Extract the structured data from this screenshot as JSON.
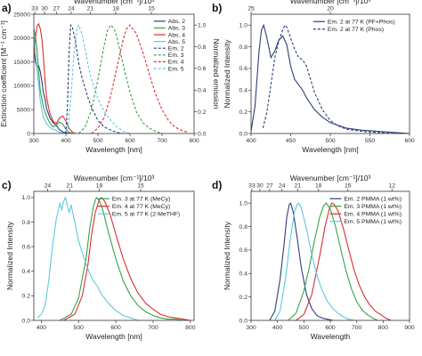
{
  "figure_title": "",
  "chart_data": [
    {
      "panel": "a)",
      "type": "line",
      "xlabel": "Wavelength [nm]",
      "ylabel": "Extinction coefficient [M⁻¹ cm⁻¹]",
      "y2label": "Normalized emission",
      "toplabel": "Wavenumber [cm⁻¹]/10³",
      "xlim": [
        300,
        800
      ],
      "ylim": [
        0,
        25000
      ],
      "y2lim": [
        0,
        1.1
      ],
      "xticks": [
        300,
        400,
        500,
        600,
        700,
        800
      ],
      "yticks": [
        0,
        5000,
        10000,
        15000,
        20000,
        25000
      ],
      "ytick_labels": [
        "0",
        "5000",
        "10000",
        "15000",
        "20000",
        "25000"
      ],
      "y2ticks": [
        0,
        0.2,
        0.4,
        0.6,
        0.8,
        1.0
      ],
      "topticks": [
        33,
        30,
        27,
        24,
        21,
        18,
        15
      ],
      "legend_position": "top-right",
      "series": [
        {
          "name": "Abs. 2",
          "color": "#2d3f7a",
          "dash": "solid",
          "axis": "left",
          "x": [
            300,
            305,
            310,
            315,
            320,
            325,
            330,
            335,
            340,
            350,
            360,
            370,
            380,
            390,
            400,
            410,
            420
          ],
          "y": [
            17500,
            15000,
            13800,
            14200,
            13000,
            11000,
            8500,
            7200,
            5200,
            3300,
            2300,
            1700,
            800,
            350,
            150,
            50,
            0
          ]
        },
        {
          "name": "Abs. 3",
          "color": "#3aa04a",
          "dash": "solid",
          "axis": "left",
          "x": [
            300,
            305,
            310,
            315,
            320,
            330,
            340,
            350,
            360,
            370,
            380,
            390,
            400,
            410,
            420
          ],
          "y": [
            22000,
            20500,
            17500,
            13000,
            9000,
            5500,
            3500,
            2200,
            1400,
            1800,
            2400,
            2000,
            900,
            250,
            0
          ]
        },
        {
          "name": "Abs. 4",
          "color": "#d93030",
          "dash": "solid",
          "axis": "left",
          "x": [
            300,
            305,
            310,
            315,
            320,
            325,
            330,
            335,
            340,
            350,
            360,
            370,
            380,
            390,
            400,
            410,
            420,
            430
          ],
          "y": [
            16000,
            20000,
            22500,
            23000,
            22000,
            20000,
            16000,
            11000,
            7500,
            4200,
            2600,
            2100,
            3200,
            3700,
            2600,
            1100,
            300,
            0
          ]
        },
        {
          "name": "Abs. 5",
          "color": "#5cc8e0",
          "dash": "solid",
          "axis": "left",
          "x": [
            300,
            305,
            310,
            315,
            320,
            325,
            330,
            340,
            350,
            360,
            370,
            380,
            390,
            400
          ],
          "y": [
            21000,
            17000,
            13500,
            10000,
            7000,
            4800,
            3400,
            2000,
            1300,
            900,
            600,
            300,
            100,
            0
          ]
        },
        {
          "name": "Em. 2",
          "color": "#2d3f7a",
          "dash": "dashed",
          "axis": "right",
          "x": [
            400,
            405,
            410,
            415,
            420,
            430,
            440,
            450,
            460,
            470,
            480,
            500,
            520,
            540,
            560,
            580
          ],
          "y": [
            0,
            0.25,
            0.75,
            1.0,
            0.98,
            0.85,
            0.65,
            0.52,
            0.42,
            0.32,
            0.24,
            0.12,
            0.06,
            0.03,
            0.01,
            0
          ]
        },
        {
          "name": "Em. 3",
          "color": "#3aa04a",
          "dash": "dashed",
          "axis": "right",
          "x": [
            440,
            460,
            480,
            500,
            520,
            530,
            540,
            550,
            560,
            580,
            600,
            620,
            640,
            660,
            680,
            700
          ],
          "y": [
            0,
            0.06,
            0.22,
            0.5,
            0.82,
            0.95,
            1.0,
            0.97,
            0.88,
            0.62,
            0.38,
            0.2,
            0.1,
            0.05,
            0.02,
            0
          ]
        },
        {
          "name": "Em. 4",
          "color": "#d93030",
          "dash": "dashed",
          "axis": "right",
          "x": [
            480,
            500,
            520,
            540,
            560,
            580,
            590,
            600,
            620,
            640,
            660,
            680,
            700,
            720,
            740,
            760,
            780
          ],
          "y": [
            0,
            0.05,
            0.15,
            0.35,
            0.62,
            0.88,
            0.97,
            1.0,
            0.92,
            0.75,
            0.55,
            0.36,
            0.22,
            0.12,
            0.06,
            0.03,
            0.01
          ]
        },
        {
          "name": "Em. 5",
          "color": "#5cc8e0",
          "dash": "dashed",
          "axis": "right",
          "x": [
            405,
            415,
            425,
            435,
            440,
            450,
            460,
            470,
            480,
            500,
            520,
            540,
            560,
            580,
            600
          ],
          "y": [
            0,
            0.3,
            0.72,
            0.98,
            1.0,
            0.92,
            0.78,
            0.62,
            0.5,
            0.32,
            0.2,
            0.12,
            0.06,
            0.02,
            0
          ]
        }
      ]
    },
    {
      "panel": "b)",
      "type": "line",
      "xlabel": "Wavelength [nm]",
      "ylabel": "Normalized Intensity",
      "toplabel": "Wavenumber [cm⁻¹]/10³",
      "xlim": [
        400,
        600
      ],
      "ylim": [
        0,
        1.1
      ],
      "xticks": [
        400,
        450,
        500,
        550,
        600
      ],
      "yticks": [
        0,
        0.2,
        0.4,
        0.6,
        0.8,
        1.0
      ],
      "ytick_labels": [
        "0.0",
        "0.2",
        "0.4",
        "0.6",
        "0.8",
        "1.0"
      ],
      "topticks": [
        25,
        20
      ],
      "legend_position": "top-right",
      "series": [
        {
          "name": "Em. 2 at 77 K (PF+Phos)",
          "color": "#2d3f7a",
          "dash": "solid",
          "x": [
            400,
            405,
            410,
            413,
            416,
            420,
            425,
            430,
            435,
            440,
            445,
            450,
            455,
            460,
            465,
            470,
            480,
            490,
            500,
            520,
            540,
            560,
            580,
            600
          ],
          "y": [
            0.02,
            0.25,
            0.75,
            0.95,
            1.0,
            0.88,
            0.7,
            0.76,
            0.86,
            0.9,
            0.82,
            0.62,
            0.5,
            0.45,
            0.4,
            0.33,
            0.22,
            0.15,
            0.1,
            0.05,
            0.03,
            0.02,
            0.01,
            0
          ]
        },
        {
          "name": "Em. 2 at 77 K (Phos)",
          "color": "#2d3f7a",
          "dash": "dashed",
          "x": [
            415,
            420,
            425,
            430,
            435,
            440,
            443,
            445,
            450,
            455,
            460,
            465,
            470,
            475,
            480,
            490,
            500,
            510,
            520,
            540,
            560,
            580,
            600
          ],
          "y": [
            0.05,
            0.2,
            0.45,
            0.7,
            0.85,
            0.96,
            1.0,
            0.98,
            0.88,
            0.78,
            0.7,
            0.68,
            0.62,
            0.5,
            0.38,
            0.22,
            0.12,
            0.07,
            0.04,
            0.02,
            0.01,
            0,
            0
          ]
        }
      ]
    },
    {
      "panel": "c)",
      "type": "line",
      "xlabel": "Wavelength [nm]",
      "ylabel": "Normalized Intensity",
      "toplabel": "Wavenumber [cm⁻¹]/10³",
      "xlim": [
        380,
        810
      ],
      "ylim": [
        0,
        1.05
      ],
      "xticks": [
        400,
        500,
        600,
        700,
        800
      ],
      "yticks": [
        0,
        0.2,
        0.4,
        0.6,
        0.8,
        1.0
      ],
      "ytick_labels": [
        "0.0",
        "0.2",
        "0.4",
        "0.6",
        "0.8",
        "1.0"
      ],
      "topticks": [
        24,
        21,
        18,
        15
      ],
      "legend_position": "top-right",
      "series": [
        {
          "name": "Em. 3 at 77 K (MeCy)",
          "color": "#3aa04a",
          "dash": "solid",
          "x": [
            450,
            480,
            500,
            520,
            530,
            540,
            548,
            555,
            565,
            580,
            600,
            620,
            640,
            660,
            680,
            700,
            720,
            740,
            760,
            780,
            800
          ],
          "y": [
            0,
            0.05,
            0.18,
            0.5,
            0.75,
            0.93,
            1.0,
            0.98,
            0.9,
            0.72,
            0.5,
            0.32,
            0.2,
            0.12,
            0.07,
            0.04,
            0.02,
            0.01,
            0.01,
            0,
            0
          ]
        },
        {
          "name": "Em. 4 at 77 K (MeCy)",
          "color": "#d93030",
          "dash": "solid",
          "x": [
            460,
            490,
            510,
            525,
            535,
            545,
            555,
            562,
            570,
            585,
            600,
            620,
            640,
            660,
            680,
            700,
            720,
            740,
            760,
            780,
            800
          ],
          "y": [
            0,
            0.05,
            0.2,
            0.45,
            0.7,
            0.88,
            0.98,
            1.0,
            0.97,
            0.86,
            0.7,
            0.5,
            0.34,
            0.22,
            0.14,
            0.09,
            0.05,
            0.03,
            0.02,
            0.01,
            0
          ]
        },
        {
          "name": "Em. 5 at 77 K (2-MeTHF)",
          "color": "#5cc8e0",
          "dash": "solid",
          "x": [
            390,
            400,
            410,
            420,
            430,
            440,
            450,
            455,
            460,
            465,
            470,
            475,
            480,
            490,
            500,
            510,
            520,
            530,
            540,
            550,
            560,
            580,
            600,
            620,
            640,
            660
          ],
          "y": [
            0.02,
            0.05,
            0.12,
            0.32,
            0.6,
            0.82,
            0.95,
            0.9,
            0.97,
            1.0,
            0.93,
            0.88,
            0.94,
            0.8,
            0.65,
            0.55,
            0.46,
            0.38,
            0.32,
            0.28,
            0.22,
            0.14,
            0.08,
            0.04,
            0.02,
            0
          ]
        }
      ]
    },
    {
      "panel": "d)",
      "type": "line",
      "xlabel": "Wavelength",
      "ylabel": "Normalized Intensity",
      "toplabel": "Wavenumber [cm⁻¹]/10³",
      "xlim": [
        300,
        900
      ],
      "ylim": [
        0,
        1.1
      ],
      "xticks": [
        300,
        400,
        500,
        600,
        700,
        800,
        900
      ],
      "yticks": [
        0,
        0.2,
        0.4,
        0.6,
        0.8,
        1.0
      ],
      "ytick_labels": [
        "0.0",
        "0.2",
        "0.4",
        "0.6",
        "0.8",
        "1.0"
      ],
      "topticks": [
        33,
        30,
        27,
        24,
        21,
        18,
        15,
        12
      ],
      "legend_position": "top-right",
      "series": [
        {
          "name": "Em. 2 PMMA (1 wt%)",
          "color": "#2d3f7a",
          "dash": "solid",
          "x": [
            370,
            390,
            410,
            425,
            435,
            445,
            450,
            460,
            475,
            490,
            510,
            530,
            550,
            570,
            590,
            610
          ],
          "y": [
            0,
            0.08,
            0.35,
            0.65,
            0.88,
            0.99,
            1.0,
            0.92,
            0.7,
            0.45,
            0.22,
            0.1,
            0.04,
            0.02,
            0.01,
            0
          ]
        },
        {
          "name": "Em. 3 PMMA (1 wt%)",
          "color": "#3aa04a",
          "dash": "solid",
          "x": [
            440,
            470,
            500,
            520,
            540,
            560,
            575,
            585,
            600,
            620,
            640,
            660,
            680,
            700,
            720,
            740,
            760,
            780
          ],
          "y": [
            0,
            0.06,
            0.25,
            0.45,
            0.68,
            0.88,
            0.98,
            1.0,
            0.95,
            0.8,
            0.6,
            0.42,
            0.27,
            0.16,
            0.09,
            0.05,
            0.02,
            0
          ]
        },
        {
          "name": "Em. 4 PMMA (1 wt%)",
          "color": "#d93030",
          "dash": "solid",
          "x": [
            470,
            500,
            530,
            560,
            580,
            595,
            605,
            615,
            630,
            650,
            670,
            690,
            710,
            730,
            750,
            770,
            790,
            810,
            830
          ],
          "y": [
            0,
            0.05,
            0.22,
            0.55,
            0.8,
            0.94,
            1.0,
            0.99,
            0.93,
            0.78,
            0.6,
            0.43,
            0.3,
            0.2,
            0.13,
            0.08,
            0.05,
            0.02,
            0
          ]
        },
        {
          "name": "Em. 5 PMMA (1 wt%)",
          "color": "#5cc8e0",
          "dash": "solid",
          "x": [
            390,
            410,
            430,
            450,
            465,
            475,
            480,
            490,
            510,
            530,
            550,
            570,
            590,
            610,
            630,
            650,
            670,
            690
          ],
          "y": [
            0,
            0.08,
            0.35,
            0.72,
            0.93,
            0.99,
            1.0,
            0.96,
            0.78,
            0.56,
            0.38,
            0.25,
            0.16,
            0.1,
            0.06,
            0.03,
            0.01,
            0
          ]
        }
      ]
    }
  ]
}
